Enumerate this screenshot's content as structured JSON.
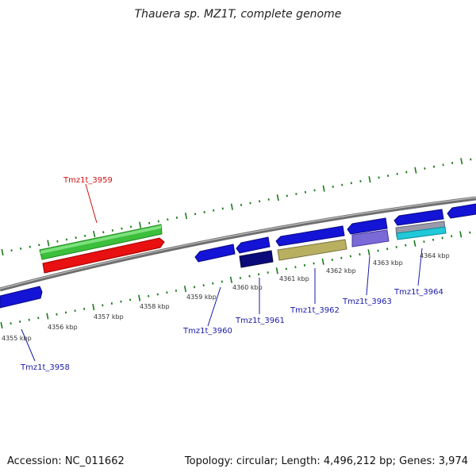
{
  "title": "Thauera sp. MZ1T, complete genome",
  "footer": {
    "accession": "Accession: NC_011662",
    "summary": "Topology: circular; Length: 4,496,212 bp; Genes: 3,974"
  },
  "colors": {
    "background": "#ffffff",
    "backbone": "#8a8a8a",
    "ticks": "#1b7a1b",
    "kbp_label": "#333333",
    "gene_label_blue": "#1a1aa8",
    "gene_label_red": "#d01010",
    "gene_blue": "#1414d6",
    "gene_green": "#3cbf3c",
    "gene_red": "#e81010",
    "gene_navy": "#0a0a7a",
    "gene_olive": "#b8b060",
    "gene_purple": "#7a6ad8",
    "gene_cyan": "#20c8d8",
    "gene_gray": "#9a9aaa"
  },
  "kbp_labels": [
    "4355 kbp",
    "4356 kbp",
    "4357 kbp",
    "4358 kbp",
    "4359 kbp",
    "4360 kbp",
    "4361 kbp",
    "4362 kbp",
    "4363 kbp",
    "4364 kbp"
  ],
  "gene_labels": [
    {
      "text": "Tmz1t_3959",
      "color": "red"
    },
    {
      "text": "Tmz1t_3958",
      "color": "blue"
    },
    {
      "text": "Tmz1t_3960",
      "color": "blue"
    },
    {
      "text": "Tmz1t_3961",
      "color": "blue"
    },
    {
      "text": "Tmz1t_3962",
      "color": "blue"
    },
    {
      "text": "Tmz1t_3963",
      "color": "blue"
    },
    {
      "text": "Tmz1t_3964",
      "color": "blue"
    }
  ]
}
